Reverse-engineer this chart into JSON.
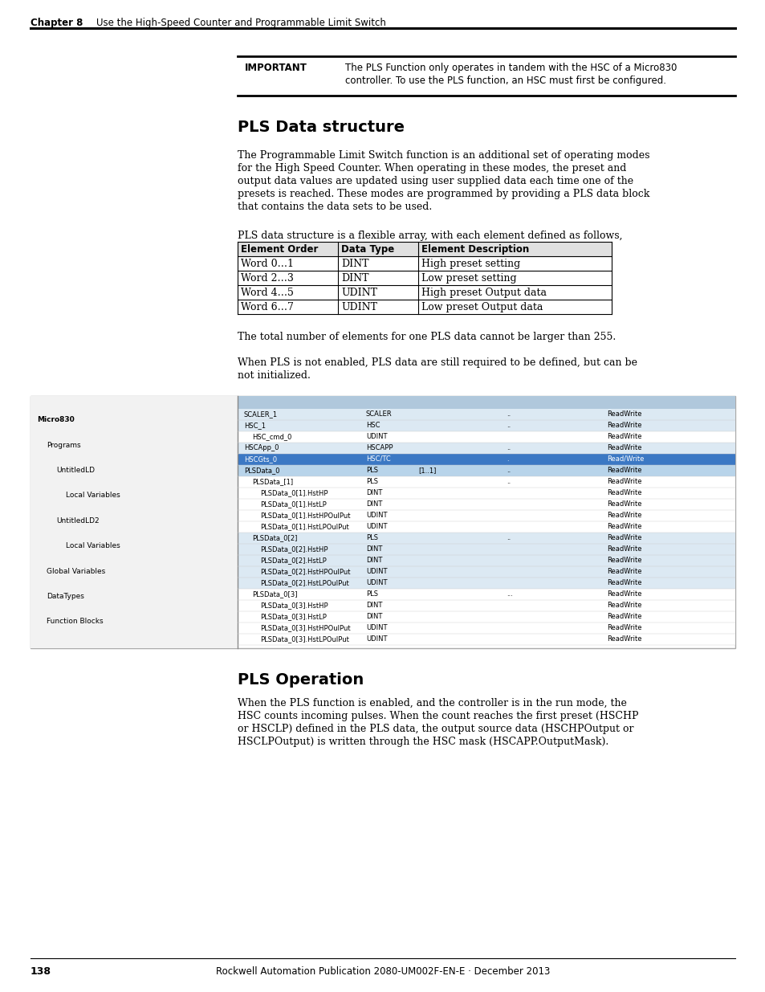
{
  "page_bg": "#ffffff",
  "chapter_label": "Chapter 8",
  "chapter_title": "Use the High-Speed Counter and Programmable Limit Switch",
  "page_number": "138",
  "footer_text": "Rockwell Automation Publication 2080-UM002F-EN-E · December 2013",
  "important_label": "IMPORTANT",
  "important_line1": "The PLS Function only operates in tandem with the HSC of a Micro830",
  "important_line2": "controller. To use the PLS function, an HSC must first be configured.",
  "section1_title": "PLS Data structure",
  "section1_para1_lines": [
    "The Programmable Limit Switch function is an additional set of operating modes",
    "for the High Speed Counter. When operating in these modes, the preset and",
    "output data values are updated using user supplied data each time one of the",
    "presets is reached. These modes are programmed by providing a PLS data block",
    "that contains the data sets to be used."
  ],
  "section1_para2": "PLS data structure is a flexible array, with each element defined as follows,",
  "table_headers": [
    "Element Order",
    "Data Type",
    "Element Description"
  ],
  "table_rows": [
    [
      "Word 0…1",
      "DINT",
      "High preset setting"
    ],
    [
      "Word 2…3",
      "DINT",
      "Low preset setting"
    ],
    [
      "Word 4…5",
      "UDINT",
      "High preset Output data"
    ],
    [
      "Word 6…7",
      "UDINT",
      "Low preset Output data"
    ]
  ],
  "section1_para3": "The total number of elements for one PLS data cannot be larger than 255.",
  "section1_para4_lines": [
    "When PLS is not enabled, PLS data are still required to be defined, but can be",
    "not initialized."
  ],
  "section2_title": "PLS Operation",
  "section2_para1_lines": [
    "When the PLS function is enabled, and the controller is in the run mode, the",
    "HSC counts incoming pulses. When the count reaches the first preset (HSCHP",
    "or HSCLP) defined in the PLS data, the output source data (HSCHPOutput or",
    "HSCLPOutput) is written through the HSC mask (HSCAPP.OutputMask)."
  ],
  "screenshot_left_panel_items": [
    {
      "text": "Micro830",
      "indent": 0,
      "bold": true
    },
    {
      "text": "Programs",
      "indent": 1,
      "bold": false
    },
    {
      "text": "UntitledLD",
      "indent": 2,
      "bold": false
    },
    {
      "text": "Local Variables",
      "indent": 3,
      "bold": false
    },
    {
      "text": "UntitledLD2",
      "indent": 2,
      "bold": false
    },
    {
      "text": "Local Variables",
      "indent": 3,
      "bold": false
    },
    {
      "text": "Global Variables",
      "indent": 1,
      "bold": false
    },
    {
      "text": "DataTypes",
      "indent": 1,
      "bold": false
    },
    {
      "text": "Function Blocks",
      "indent": 1,
      "bold": false
    }
  ],
  "screenshot_grid_rows": [
    {
      "name": "SCALER_1",
      "type": "SCALER",
      "dim": "",
      "val1": "",
      "val2": "..",
      "access": "ReadWrite",
      "indent": 0,
      "bg": "light",
      "highlight": false
    },
    {
      "name": "HSC_1",
      "type": "HSC",
      "dim": "",
      "val1": "",
      "val2": "..",
      "access": "ReadWrite",
      "indent": 0,
      "bg": "light",
      "highlight": false
    },
    {
      "name": "HSC_cmd_0",
      "type": "UDINT",
      "dim": "",
      "val1": "",
      "val2": "",
      "access": "ReadWrite",
      "indent": 1,
      "bg": "white",
      "highlight": false
    },
    {
      "name": "HSCApp_0",
      "type": "HSCAPP",
      "dim": "",
      "val1": "",
      "val2": "..",
      "access": "ReadWrite",
      "indent": 0,
      "bg": "light",
      "highlight": false
    },
    {
      "name": "HSCGts_0",
      "type": "HSC/TC",
      "dim": "",
      "val1": ".",
      "val2": ".",
      "access": "Read/Write",
      "indent": 0,
      "bg": "blue",
      "highlight": true
    },
    {
      "name": "PLSData_0",
      "type": "PLS",
      "dim": "[1..1]",
      "val1": "",
      "val2": "..",
      "access": "ReadWrite",
      "indent": 0,
      "bg": "light2",
      "highlight": false
    },
    {
      "name": "PLSData_[1]",
      "type": "PLS",
      "dim": "",
      "val1": "",
      "val2": "..",
      "access": "ReadWrite",
      "indent": 1,
      "bg": "white",
      "highlight": false
    },
    {
      "name": "PLSData_0[1].HstHP",
      "type": "DINT",
      "dim": "",
      "val1": "",
      "val2": "",
      "access": "ReadWrite",
      "indent": 2,
      "bg": "white",
      "highlight": false
    },
    {
      "name": "PLSData_0[1].HstLP",
      "type": "DINT",
      "dim": "",
      "val1": "",
      "val2": "",
      "access": "ReadWrite",
      "indent": 2,
      "bg": "white",
      "highlight": false
    },
    {
      "name": "PLSData_0[1].HstHPOulPut",
      "type": "UDINT",
      "dim": "",
      "val1": "",
      "val2": "",
      "access": "ReadWrite",
      "indent": 2,
      "bg": "white",
      "highlight": false
    },
    {
      "name": "PLSData_0[1].HstLPOulPut",
      "type": "UDINT",
      "dim": "",
      "val1": "",
      "val2": "",
      "access": "ReadWrite",
      "indent": 2,
      "bg": "white",
      "highlight": false
    },
    {
      "name": "PLSData_0[2]",
      "type": "PLS",
      "dim": "",
      "val1": "",
      "val2": "..",
      "access": "ReadWrite",
      "indent": 1,
      "bg": "light",
      "highlight": false
    },
    {
      "name": "PLSData_0[2].HstHP",
      "type": "DINT",
      "dim": "",
      "val1": "",
      "val2": "",
      "access": "ReadWrite",
      "indent": 2,
      "bg": "light",
      "highlight": false
    },
    {
      "name": "PLSData_0[2].HstLP",
      "type": "DINT",
      "dim": "",
      "val1": "",
      "val2": "",
      "access": "ReadWrite",
      "indent": 2,
      "bg": "light",
      "highlight": false
    },
    {
      "name": "PLSData_0[2].HstHPOulPut",
      "type": "UDINT",
      "dim": "",
      "val1": "",
      "val2": "",
      "access": "ReadWrite",
      "indent": 2,
      "bg": "light",
      "highlight": false
    },
    {
      "name": "PLSData_0[2].HstLPOulPut",
      "type": "UDINT",
      "dim": "",
      "val1": "",
      "val2": "",
      "access": "ReadWrite",
      "indent": 2,
      "bg": "light",
      "highlight": false
    },
    {
      "name": "PLSData_0[3]",
      "type": "PLS",
      "dim": "",
      "val1": "",
      "val2": "...",
      "access": "ReadWrite",
      "indent": 1,
      "bg": "white",
      "highlight": false
    },
    {
      "name": "PLSData_0[3].HstHP",
      "type": "DINT",
      "dim": "",
      "val1": "",
      "val2": "",
      "access": "ReadWrite",
      "indent": 2,
      "bg": "white",
      "highlight": false
    },
    {
      "name": "PLSData_0[3].HstLP",
      "type": "DINT",
      "dim": "",
      "val1": "",
      "val2": "",
      "access": "ReadWrite",
      "indent": 2,
      "bg": "white",
      "highlight": false
    },
    {
      "name": "PLSData_0[3].HstHPOulPut",
      "type": "UDINT",
      "dim": "",
      "val1": "",
      "val2": "",
      "access": "ReadWrite",
      "indent": 2,
      "bg": "white",
      "highlight": false
    },
    {
      "name": "PLSData_0[3].HstLPOulPut",
      "type": "UDINT",
      "dim": "",
      "val1": "",
      "val2": "",
      "access": "ReadWrite",
      "indent": 2,
      "bg": "white",
      "highlight": false
    }
  ],
  "colors": {
    "grid_light": "#dce9f3",
    "grid_light2": "#b8d4ea",
    "grid_white": "#f5f5f5",
    "grid_blue": "#3b78c4",
    "grid_header": "#b0c8dc",
    "left_panel_bg": "#f2f2f2",
    "left_panel_border": "#888888",
    "screenshot_border": "#aaaaaa"
  }
}
